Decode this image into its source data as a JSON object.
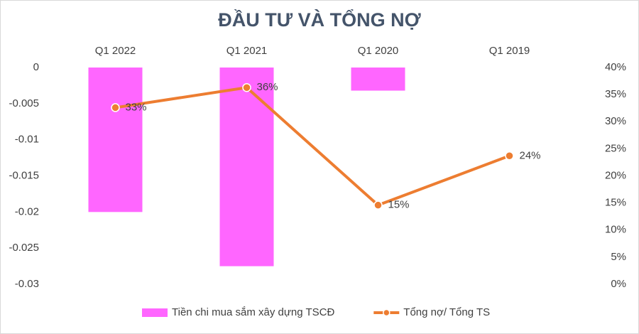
{
  "chart_data": {
    "type": "bar",
    "title": "ĐẦU TƯ VÀ TỔNG NỢ",
    "categories": [
      "Q1 2022",
      "Q1 2021",
      "Q1 2020",
      "Q1 2019"
    ],
    "series": [
      {
        "name": "Tiền chi mua sắm xây dựng TSCĐ",
        "type": "bar",
        "color": "#ff66ff",
        "values": [
          -0.02,
          -0.0275,
          -0.0032,
          null
        ]
      },
      {
        "name": "Tổng nợ/ Tổng TS",
        "type": "line",
        "axis": "y2",
        "color": "#ed7d31",
        "values": [
          32.6,
          36.3,
          14.6,
          23.7
        ],
        "value_labels": [
          "33%",
          "36%",
          "15%",
          "24%"
        ]
      }
    ],
    "ylim": [
      -0.03,
      0
    ],
    "yticks": [
      -0.03,
      -0.025,
      -0.02,
      -0.015,
      -0.01,
      -0.005,
      0
    ],
    "y2lim": [
      0,
      40
    ],
    "y2ticks": [
      {
        "value": 0,
        "label": "0%"
      },
      {
        "value": 5,
        "label": "5%"
      },
      {
        "value": 10,
        "label": "10%"
      },
      {
        "value": 15,
        "label": "15%"
      },
      {
        "value": 20,
        "label": "20%"
      },
      {
        "value": 25,
        "label": "25%"
      },
      {
        "value": 30,
        "label": "30%"
      },
      {
        "value": 35,
        "label": "35%"
      },
      {
        "value": 40,
        "label": "40%"
      }
    ],
    "grid": false,
    "legend": "bottom"
  }
}
